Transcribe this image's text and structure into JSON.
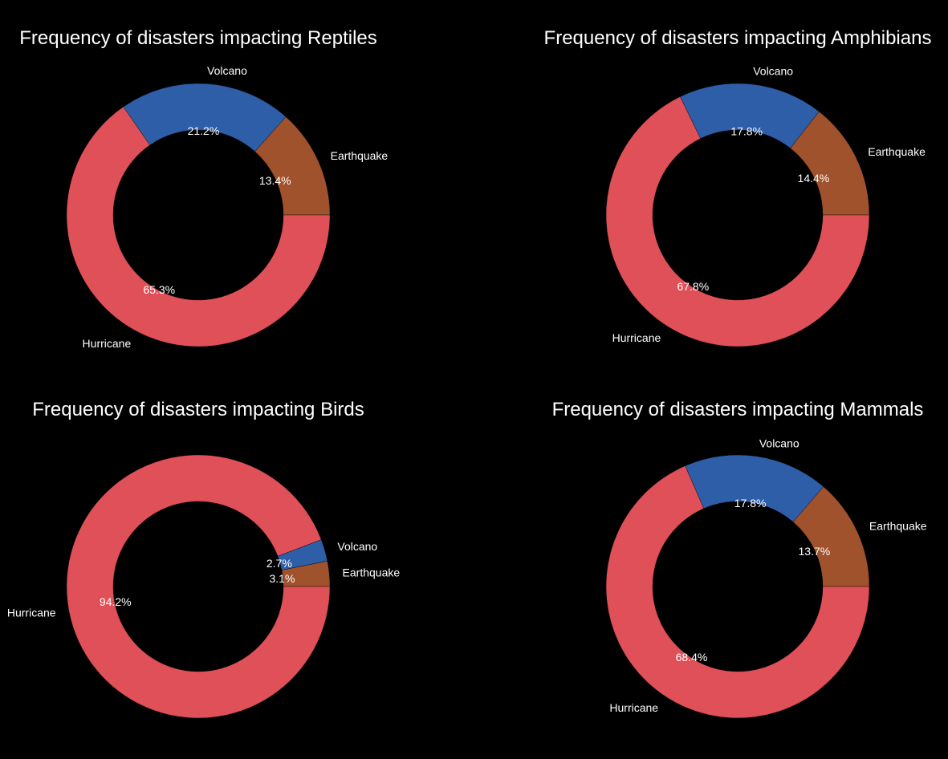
{
  "figure": {
    "background": "#000000"
  },
  "chart_data": [
    {
      "type": "pie",
      "style": "donut",
      "title": "Frequency of disasters impacting Reptiles",
      "labels": [
        "Earthquake",
        "Volcano",
        "Hurricane"
      ],
      "values": [
        13.4,
        21.2,
        65.3
      ],
      "value_labels": [
        "13.4%",
        "21.2%",
        "65.3%"
      ],
      "colors": [
        "#a0522d",
        "#2e5ea8",
        "#e05058"
      ]
    },
    {
      "type": "pie",
      "style": "donut",
      "title": "Frequency of disasters impacting Amphibians",
      "labels": [
        "Earthquake",
        "Volcano",
        "Hurricane"
      ],
      "values": [
        14.4,
        17.8,
        67.8
      ],
      "value_labels": [
        "14.4%",
        "17.8%",
        "67.8%"
      ],
      "colors": [
        "#a0522d",
        "#2e5ea8",
        "#e05058"
      ]
    },
    {
      "type": "pie",
      "style": "donut",
      "title": "Frequency of disasters impacting Birds",
      "labels": [
        "Earthquake",
        "Volcano",
        "Hurricane"
      ],
      "values": [
        3.1,
        2.7,
        94.2
      ],
      "value_labels": [
        "3.1%",
        "2.7%",
        "94.2%"
      ],
      "colors": [
        "#a0522d",
        "#2e5ea8",
        "#e05058"
      ]
    },
    {
      "type": "pie",
      "style": "donut",
      "title": "Frequency of disasters impacting Mammals",
      "labels": [
        "Earthquake",
        "Volcano",
        "Hurricane"
      ],
      "values": [
        13.7,
        17.8,
        68.4
      ],
      "value_labels": [
        "13.7%",
        "17.8%",
        "68.4%"
      ],
      "colors": [
        "#a0522d",
        "#2e5ea8",
        "#e05058"
      ]
    }
  ]
}
